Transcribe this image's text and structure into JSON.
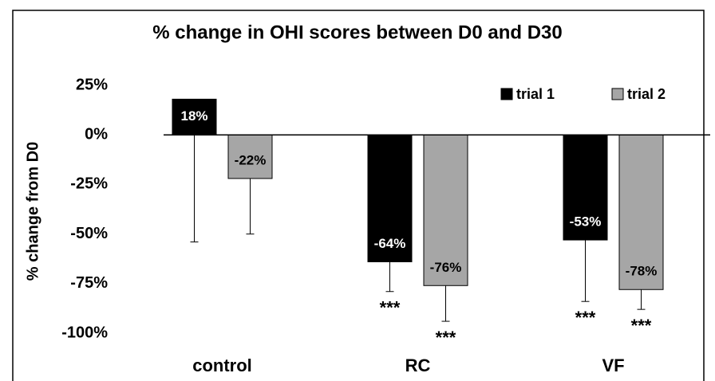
{
  "chart_data": {
    "type": "bar",
    "title": "% change in OHI scores between D0 and D30",
    "y_label": "% change from D0",
    "categories": [
      "control",
      "RC",
      "VF"
    ],
    "series": [
      {
        "name": "trial 1",
        "color": "#000000",
        "values": [
          18,
          -64,
          -53
        ],
        "value_labels": [
          "18%",
          "-64%",
          "-53%"
        ],
        "errors": [
          72,
          15,
          31
        ],
        "annotations": [
          null,
          "***",
          "***"
        ]
      },
      {
        "name": "trial 2",
        "color": "#a6a6a6",
        "values": [
          -22,
          -76,
          -78
        ],
        "value_labels": [
          "-22%",
          "-76%",
          "-78%"
        ],
        "errors": [
          28,
          18,
          10
        ],
        "annotations": [
          null,
          "***",
          "***"
        ]
      }
    ],
    "ylim": [
      -100,
      25
    ],
    "yticks": [
      {
        "value": 25,
        "label": "25%"
      },
      {
        "value": 0,
        "label": "0%"
      },
      {
        "value": -25,
        "label": "-25%"
      },
      {
        "value": -50,
        "label": "-50%"
      },
      {
        "value": -75,
        "label": "-75%"
      },
      {
        "value": -100,
        "label": "-100%"
      }
    ],
    "legend": "top-right",
    "grid": false
  }
}
